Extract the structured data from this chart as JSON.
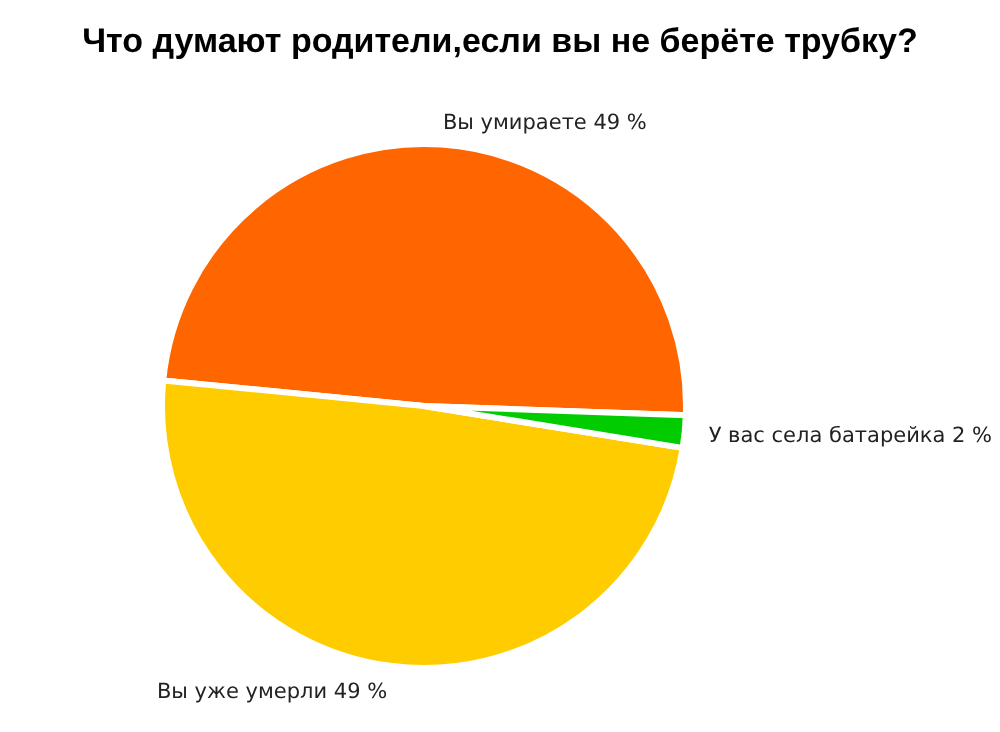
{
  "chart_data": {
    "type": "pie",
    "title": "Что думают родители,если вы не берёте трубку?",
    "categories": [
      "Вы умираете",
      "Вы уже умерли",
      "У вас села батарейка"
    ],
    "values": [
      49,
      49,
      2
    ],
    "colors": [
      "#ff6600",
      "#ffcc00",
      "#00cc00"
    ],
    "value_labels": [
      "49 %",
      "49 %",
      "2 %"
    ],
    "legend": false
  }
}
